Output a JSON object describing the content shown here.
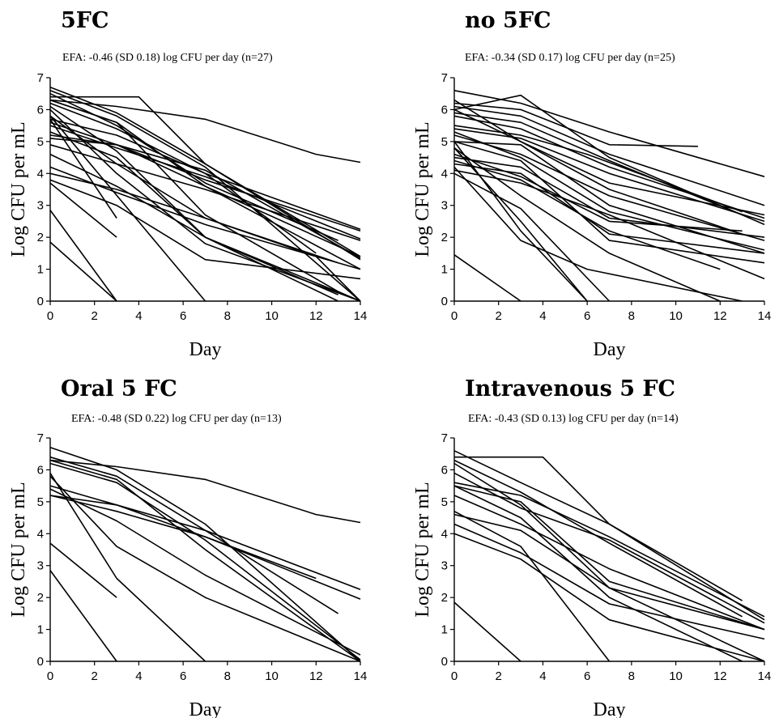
{
  "chart_data": [
    {
      "type": "line",
      "title": "5FC",
      "subtitle": "EFA: -0.46 (SD 0.18) log CFU per day (n=27)",
      "xlabel": "Day",
      "ylabel": "Log CFU per mL",
      "xlim": [
        0,
        14
      ],
      "ylim": [
        0,
        7
      ],
      "xticks": [
        0,
        2,
        4,
        6,
        8,
        10,
        12,
        14
      ],
      "yticks": [
        0,
        1,
        2,
        3,
        4,
        5,
        6,
        7
      ],
      "grid": false,
      "series": [
        {
          "x": [
            0,
            3,
            7,
            12,
            14
          ],
          "y": [
            6.3,
            6.1,
            5.7,
            4.6,
            4.35
          ]
        },
        {
          "x": [
            0,
            4,
            7,
            14
          ],
          "y": [
            6.4,
            6.4,
            4.3,
            1.3
          ]
        },
        {
          "x": [
            0,
            3,
            7,
            14
          ],
          "y": [
            6.6,
            5.8,
            4.2,
            0.0
          ]
        },
        {
          "x": [
            0,
            3,
            7,
            13,
            14
          ],
          "y": [
            6.3,
            5.6,
            2.7,
            0.3,
            0.0
          ]
        },
        {
          "x": [
            0,
            3,
            7,
            14
          ],
          "y": [
            6.2,
            5.4,
            4.0,
            2.25
          ]
        },
        {
          "x": [
            0,
            3,
            7,
            14
          ],
          "y": [
            5.5,
            4.8,
            3.9,
            1.95
          ]
        },
        {
          "x": [
            0,
            3,
            7,
            14
          ],
          "y": [
            5.2,
            4.9,
            4.1,
            1.35
          ]
        },
        {
          "x": [
            0,
            3,
            7,
            14
          ],
          "y": [
            5.6,
            4.9,
            3.6,
            1.0
          ]
        },
        {
          "x": [
            0,
            3,
            7,
            12,
            14
          ],
          "y": [
            5.8,
            4.3,
            2.6,
            1.4,
            0.0
          ]
        },
        {
          "x": [
            0,
            3
          ],
          "y": [
            5.7,
            2.6
          ]
        },
        {
          "x": [
            0,
            3,
            7,
            14
          ],
          "y": [
            6.7,
            5.9,
            4.3,
            1.4
          ]
        },
        {
          "x": [
            0,
            3,
            7,
            13
          ],
          "y": [
            6.5,
            5.5,
            3.7,
            1.9
          ]
        },
        {
          "x": [
            0,
            3,
            7,
            13
          ],
          "y": [
            6.1,
            4.7,
            2.0,
            0.2
          ]
        },
        {
          "x": [
            0,
            3,
            7,
            12
          ],
          "y": [
            5.7,
            5.2,
            4.0,
            1.5
          ]
        },
        {
          "x": [
            0,
            3,
            7,
            13
          ],
          "y": [
            5.3,
            4.5,
            2.0,
            0.0
          ]
        },
        {
          "x": [
            0,
            3,
            7,
            14
          ],
          "y": [
            4.6,
            3.6,
            2.0,
            0.0
          ]
        },
        {
          "x": [
            0,
            3,
            7,
            14
          ],
          "y": [
            4.2,
            3.4,
            2.4,
            1.0
          ]
        },
        {
          "x": [
            0,
            3,
            7,
            14
          ],
          "y": [
            3.8,
            3.0,
            1.3,
            0.7
          ]
        },
        {
          "x": [
            0,
            3
          ],
          "y": [
            3.7,
            2.0
          ]
        },
        {
          "x": [
            0,
            7
          ],
          "y": [
            5.8,
            0.0
          ]
        },
        {
          "x": [
            0,
            3
          ],
          "y": [
            2.85,
            0.0
          ]
        },
        {
          "x": [
            0,
            3
          ],
          "y": [
            1.85,
            0.0
          ]
        },
        {
          "x": [
            0,
            3,
            7,
            14
          ],
          "y": [
            6.3,
            5.6,
            3.6,
            1.4
          ]
        },
        {
          "x": [
            0,
            3,
            7,
            14
          ],
          "y": [
            5.1,
            4.9,
            3.8,
            2.2
          ]
        },
        {
          "x": [
            0,
            3,
            7,
            14
          ],
          "y": [
            4.9,
            4.3,
            3.5,
            1.9
          ]
        },
        {
          "x": [
            0,
            3,
            7,
            13
          ],
          "y": [
            4.0,
            3.5,
            2.6,
            1.2
          ]
        },
        {
          "x": [
            0,
            3,
            7,
            14
          ],
          "y": [
            6.0,
            4.0,
            1.8,
            0.0
          ]
        }
      ]
    },
    {
      "type": "line",
      "title": "no 5FC",
      "subtitle": "EFA: -0.34 (SD 0.17) log CFU per day (n=25)",
      "xlabel": "Day",
      "ylabel": "Log CFU per mL",
      "xlim": [
        0,
        14
      ],
      "ylim": [
        0,
        7
      ],
      "xticks": [
        0,
        2,
        4,
        6,
        8,
        10,
        12,
        14
      ],
      "yticks": [
        0,
        1,
        2,
        3,
        4,
        5,
        6,
        7
      ],
      "grid": false,
      "series": [
        {
          "x": [
            0,
            3,
            7,
            11
          ],
          "y": [
            6.2,
            6.0,
            4.9,
            4.85
          ]
        },
        {
          "x": [
            0,
            3,
            7,
            14
          ],
          "y": [
            6.6,
            6.2,
            5.3,
            3.9
          ]
        },
        {
          "x": [
            0,
            3,
            7,
            14
          ],
          "y": [
            6.0,
            6.45,
            4.5,
            2.4
          ]
        },
        {
          "x": [
            0,
            3,
            7,
            13
          ],
          "y": [
            5.9,
            5.6,
            4.4,
            2.7
          ]
        },
        {
          "x": [
            0,
            3,
            6,
            13
          ],
          "y": [
            5.5,
            5.2,
            4.6,
            2.8
          ]
        },
        {
          "x": [
            0,
            3,
            7,
            14
          ],
          "y": [
            5.4,
            5.1,
            4.0,
            2.5
          ]
        },
        {
          "x": [
            0,
            3,
            7,
            14
          ],
          "y": [
            6.1,
            5.8,
            4.6,
            3.0
          ]
        },
        {
          "x": [
            0,
            3,
            7,
            14
          ],
          "y": [
            4.5,
            4.2,
            2.6,
            2.0
          ]
        },
        {
          "x": [
            0,
            3,
            7,
            14
          ],
          "y": [
            4.3,
            4.0,
            2.1,
            1.5
          ]
        },
        {
          "x": [
            0,
            3,
            7,
            14
          ],
          "y": [
            4.1,
            3.7,
            2.7,
            0.7
          ]
        },
        {
          "x": [
            0,
            3,
            7,
            14
          ],
          "y": [
            5.0,
            4.4,
            1.9,
            1.2
          ]
        },
        {
          "x": [
            0,
            3,
            7,
            13
          ],
          "y": [
            6.3,
            5.0,
            3.5,
            2.1
          ]
        },
        {
          "x": [
            0,
            3,
            7,
            14
          ],
          "y": [
            5.3,
            4.5,
            2.8,
            1.6
          ]
        },
        {
          "x": [
            0,
            3,
            7,
            12
          ],
          "y": [
            4.8,
            3.3,
            1.5,
            0.0
          ]
        },
        {
          "x": [
            0,
            3,
            6
          ],
          "y": [
            5.0,
            2.2,
            0.0
          ]
        },
        {
          "x": [
            0,
            3,
            6
          ],
          "y": [
            4.8,
            2.5,
            0.0
          ]
        },
        {
          "x": [
            0,
            3,
            6,
            13
          ],
          "y": [
            4.2,
            1.9,
            1.0,
            0.0
          ]
        },
        {
          "x": [
            0,
            3,
            7
          ],
          "y": [
            4.0,
            2.9,
            0.0
          ]
        },
        {
          "x": [
            0,
            3
          ],
          "y": [
            1.45,
            0.0
          ]
        },
        {
          "x": [
            0,
            3,
            7,
            14
          ],
          "y": [
            5.8,
            5.4,
            4.2,
            2.6
          ]
        },
        {
          "x": [
            0,
            3,
            7,
            14
          ],
          "y": [
            5.0,
            4.9,
            3.0,
            1.5
          ]
        },
        {
          "x": [
            0,
            3,
            7,
            13
          ],
          "y": [
            4.6,
            3.9,
            2.5,
            2.2
          ]
        },
        {
          "x": [
            0,
            3,
            7,
            14
          ],
          "y": [
            6.0,
            5.0,
            3.7,
            2.7
          ]
        },
        {
          "x": [
            0,
            3,
            7,
            14
          ],
          "y": [
            5.2,
            4.6,
            3.3,
            1.9
          ]
        },
        {
          "x": [
            0,
            3,
            7,
            12
          ],
          "y": [
            4.4,
            3.8,
            2.2,
            1.0
          ]
        }
      ]
    },
    {
      "type": "line",
      "title": "Oral 5 FC",
      "subtitle": "EFA: -0.48 (SD 0.22) log CFU per day (n=13)",
      "xlabel": "Day",
      "ylabel": "Log CFU per mL",
      "xlim": [
        0,
        14
      ],
      "ylim": [
        0,
        7
      ],
      "xticks": [
        0,
        2,
        4,
        6,
        8,
        10,
        12,
        14
      ],
      "yticks": [
        0,
        1,
        2,
        3,
        4,
        5,
        6,
        7
      ],
      "grid": false,
      "series": [
        {
          "x": [
            0,
            3,
            7,
            12,
            14
          ],
          "y": [
            6.3,
            6.1,
            5.7,
            4.6,
            4.35
          ]
        },
        {
          "x": [
            0,
            3,
            7,
            14
          ],
          "y": [
            6.7,
            6.0,
            4.3,
            0.0
          ]
        },
        {
          "x": [
            0,
            3,
            7,
            14
          ],
          "y": [
            6.4,
            5.8,
            4.1,
            2.25
          ]
        },
        {
          "x": [
            0,
            3,
            7,
            14
          ],
          "y": [
            6.2,
            5.6,
            3.8,
            0.05
          ]
        },
        {
          "x": [
            0,
            3,
            7,
            14
          ],
          "y": [
            5.5,
            4.9,
            3.9,
            1.95
          ]
        },
        {
          "x": [
            0,
            3,
            7,
            13
          ],
          "y": [
            5.2,
            4.9,
            4.1,
            1.5
          ]
        },
        {
          "x": [
            0,
            3,
            7,
            14
          ],
          "y": [
            6.3,
            5.7,
            3.5,
            0.0
          ]
        },
        {
          "x": [
            0,
            3,
            7,
            14
          ],
          "y": [
            5.8,
            3.6,
            2.0,
            0.0
          ]
        },
        {
          "x": [
            0,
            3,
            7,
            14
          ],
          "y": [
            5.4,
            4.4,
            2.7,
            0.2
          ]
        },
        {
          "x": [
            0,
            3
          ],
          "y": [
            3.7,
            2.0
          ]
        },
        {
          "x": [
            0,
            3,
            7
          ],
          "y": [
            5.9,
            2.6,
            0.0
          ]
        },
        {
          "x": [
            0,
            3
          ],
          "y": [
            2.85,
            0.0
          ]
        },
        {
          "x": [
            0,
            3,
            7,
            12
          ],
          "y": [
            5.2,
            4.7,
            3.9,
            2.6
          ]
        }
      ]
    },
    {
      "type": "line",
      "title": "Intravenous 5 FC",
      "subtitle": "EFA: -0.43 (SD 0.13) log CFU per day (n=14)",
      "xlabel": "Day",
      "ylabel": "Log CFU per mL",
      "xlim": [
        0,
        14
      ],
      "ylim": [
        0,
        7
      ],
      "xticks": [
        0,
        2,
        4,
        6,
        8,
        10,
        12,
        14
      ],
      "yticks": [
        0,
        1,
        2,
        3,
        4,
        5,
        6,
        7
      ],
      "grid": false,
      "series": [
        {
          "x": [
            0,
            4,
            7,
            14
          ],
          "y": [
            6.4,
            6.4,
            4.3,
            1.3
          ]
        },
        {
          "x": [
            0,
            3,
            7,
            13
          ],
          "y": [
            6.6,
            5.6,
            4.3,
            1.9
          ]
        },
        {
          "x": [
            0,
            3,
            7,
            13
          ],
          "y": [
            6.3,
            5.3,
            3.7,
            1.4
          ]
        },
        {
          "x": [
            0,
            3,
            7,
            14
          ],
          "y": [
            5.6,
            5.2,
            3.9,
            1.4
          ]
        },
        {
          "x": [
            0,
            3,
            7,
            14
          ],
          "y": [
            5.5,
            5.0,
            2.5,
            1.0
          ]
        },
        {
          "x": [
            0,
            3,
            7,
            13
          ],
          "y": [
            5.5,
            4.5,
            2.0,
            0.0
          ]
        },
        {
          "x": [
            0,
            3,
            7,
            14
          ],
          "y": [
            6.2,
            4.9,
            2.3,
            0.0
          ]
        },
        {
          "x": [
            0,
            3,
            7,
            14
          ],
          "y": [
            4.6,
            4.1,
            2.3,
            1.0
          ]
        },
        {
          "x": [
            0,
            3,
            7,
            14
          ],
          "y": [
            4.3,
            3.4,
            1.8,
            0.7
          ]
        },
        {
          "x": [
            0,
            3,
            7,
            14
          ],
          "y": [
            4.0,
            3.2,
            1.3,
            0.0
          ]
        },
        {
          "x": [
            0,
            3,
            7
          ],
          "y": [
            4.7,
            3.6,
            0.0
          ]
        },
        {
          "x": [
            0,
            3
          ],
          "y": [
            1.85,
            0.0
          ]
        },
        {
          "x": [
            0,
            3,
            7,
            14
          ],
          "y": [
            5.9,
            4.8,
            3.8,
            1.2
          ]
        },
        {
          "x": [
            0,
            3,
            7,
            14
          ],
          "y": [
            5.2,
            4.3,
            2.9,
            1.0
          ]
        }
      ]
    }
  ]
}
